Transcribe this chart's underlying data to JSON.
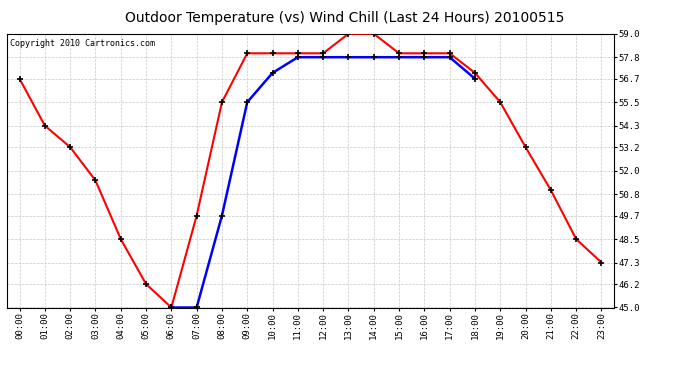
{
  "title": "Outdoor Temperature (vs) Wind Chill (Last 24 Hours) 20100515",
  "copyright": "Copyright 2010 Cartronics.com",
  "hours": [
    0,
    1,
    2,
    3,
    4,
    5,
    6,
    7,
    8,
    9,
    10,
    11,
    12,
    13,
    14,
    15,
    16,
    17,
    18,
    19,
    20,
    21,
    22,
    23
  ],
  "temp": [
    56.7,
    54.3,
    53.2,
    51.5,
    48.5,
    46.2,
    45.0,
    49.7,
    55.5,
    58.0,
    58.0,
    58.0,
    58.0,
    59.0,
    59.0,
    58.0,
    58.0,
    58.0,
    57.0,
    55.5,
    53.2,
    51.0,
    48.5,
    47.3
  ],
  "windchill": [
    null,
    null,
    null,
    null,
    null,
    null,
    45.0,
    45.0,
    49.7,
    55.5,
    57.0,
    57.8,
    57.8,
    57.8,
    57.8,
    57.8,
    57.8,
    57.8,
    56.7,
    null,
    null,
    null,
    null,
    null
  ],
  "temp_color": "#ff0000",
  "windchill_color": "#0000ff",
  "bg_color": "#ffffff",
  "plot_bg_color": "#ffffff",
  "grid_color": "#c8c8c8",
  "marker": "+",
  "marker_color": "#000000",
  "linewidth": 1.5,
  "markersize": 5,
  "markeredgewidth": 1.2,
  "ylim": [
    45.0,
    59.0
  ],
  "yticks": [
    45.0,
    46.2,
    47.3,
    48.5,
    49.7,
    50.8,
    52.0,
    53.2,
    54.3,
    55.5,
    56.7,
    57.8,
    59.0
  ],
  "xlabel_fontsize": 6.5,
  "ylabel_fontsize": 6.5,
  "title_fontsize": 10,
  "copyright_fontsize": 6
}
